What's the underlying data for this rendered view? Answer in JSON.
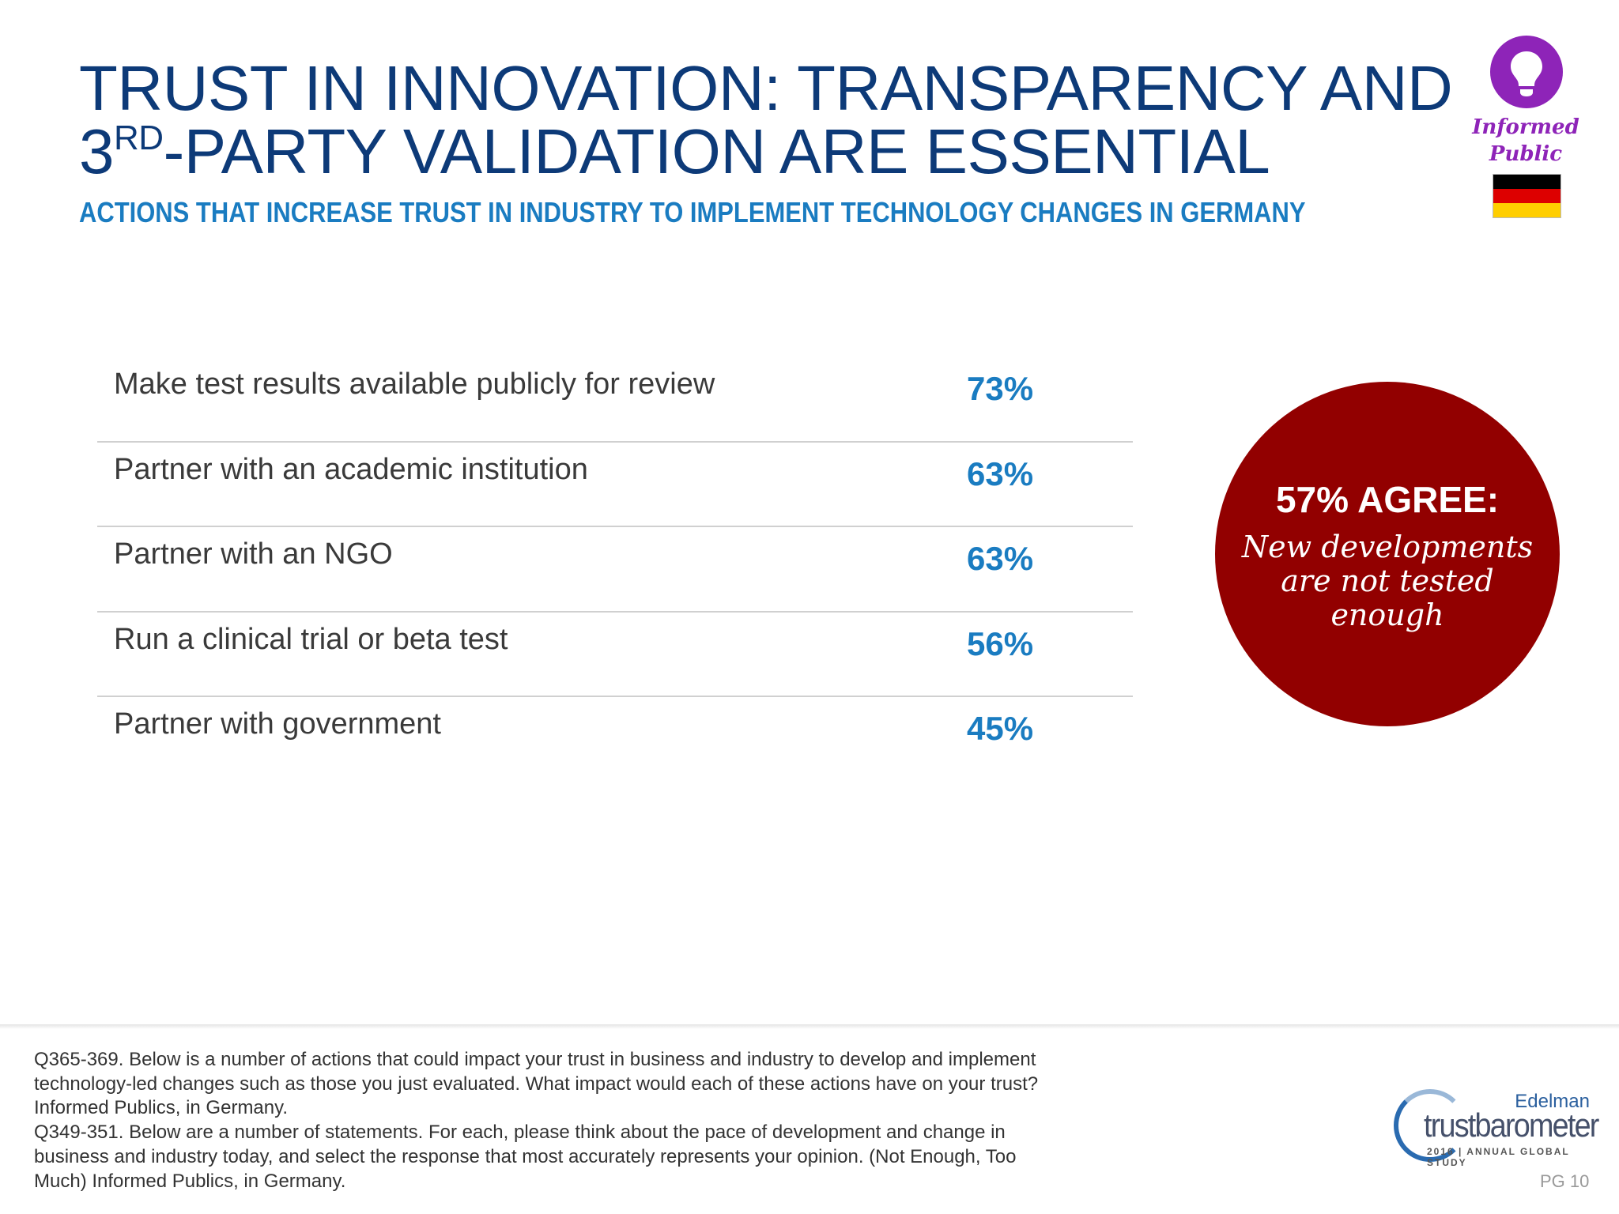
{
  "title": {
    "line1": "TRUST IN INNOVATION: TRANSPARENCY AND",
    "line2_prefix": "3",
    "line2_sup": "RD",
    "line2_rest": "-PARTY VALIDATION ARE ESSENTIAL"
  },
  "subtitle": "ACTIONS THAT INCREASE TRUST IN INDUSTRY TO IMPLEMENT TECHNOLOGY CHANGES IN GERMANY",
  "badge": {
    "icon": "lightbulb-icon",
    "label_line1": "Informed",
    "label_line2": "Public",
    "color": "#8e24b8",
    "flag_colors": [
      "#000000",
      "#dd0000",
      "#ffce00"
    ]
  },
  "rows": [
    {
      "label": "Make test results available publicly for review",
      "value": "73%"
    },
    {
      "label": "Partner with an academic institution",
      "value": "63%"
    },
    {
      "label": "Partner with an NGO",
      "value": "63%"
    },
    {
      "label": "Run a clinical trial or beta test",
      "value": "56%"
    },
    {
      "label": "Partner with government",
      "value": "45%"
    }
  ],
  "callout": {
    "headline": "57% AGREE:",
    "quote": "New developments are not tested enough",
    "color": "#920000"
  },
  "footnote": [
    "Q365-369. Below is a number of actions that could impact your trust in business and industry to develop and implement",
    "technology-led changes such as those you just evaluated. What impact would each of these actions have on your trust?",
    "Informed Publics, in Germany.",
    "Q349-351. Below are a number of statements. For each, please think about the pace of development and change in",
    "business and industry today, and select the response that most accurately represents your opinion. (Not Enough, Too",
    "Much) Informed Publics, in Germany."
  ],
  "logo": {
    "brand": "Edelman",
    "name": "trustbarometer",
    "tagline": "2016 | ANNUAL GLOBAL STUDY"
  },
  "page": "PG 10"
}
